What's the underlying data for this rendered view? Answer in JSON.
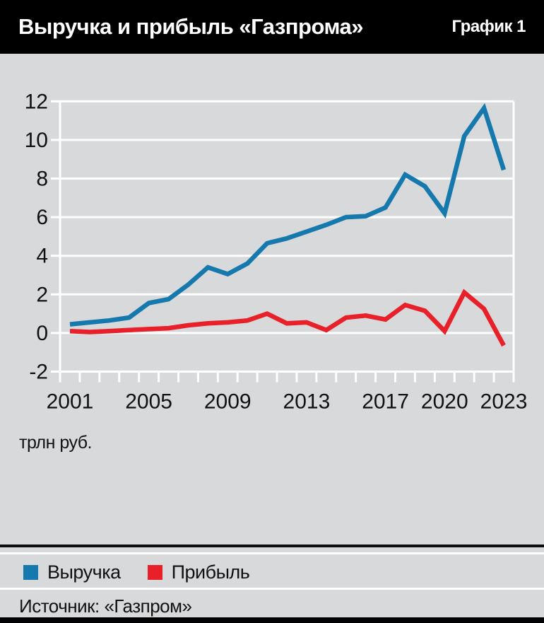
{
  "header": {
    "title": "Выручка и прибыль «Газпрома»",
    "chart_label": "График 1"
  },
  "units_label": "трлн руб.",
  "source_label": "Источник: «Газпром»",
  "legend": {
    "revenue": "Выручка",
    "profit": "Прибыль"
  },
  "colors": {
    "revenue_blue": "#1679ae",
    "profit_red": "#e8202a",
    "panel_gray": "#d8d9da",
    "grid_white": "#ffffff",
    "header_black": "#000000",
    "text_black": "#111111"
  },
  "chart_data": {
    "type": "line",
    "title": "Выручка и прибыль «Газпрома»",
    "ylabel": "трлн руб.",
    "x": [
      2001,
      2002,
      2003,
      2004,
      2005,
      2006,
      2007,
      2008,
      2009,
      2010,
      2011,
      2012,
      2013,
      2014,
      2015,
      2016,
      2017,
      2018,
      2019,
      2020,
      2021,
      2022,
      2023
    ],
    "series": [
      {
        "name": "Выручка",
        "color": "#1679ae",
        "values": [
          0.45,
          0.55,
          0.65,
          0.8,
          1.55,
          1.75,
          2.5,
          3.4,
          3.05,
          3.6,
          4.65,
          4.9,
          5.25,
          5.6,
          6.0,
          6.05,
          6.5,
          8.2,
          7.6,
          6.2,
          10.2,
          11.65,
          8.45
        ]
      },
      {
        "name": "Прибыль",
        "color": "#e8202a",
        "values": [
          0.1,
          0.05,
          0.1,
          0.15,
          0.2,
          0.25,
          0.4,
          0.5,
          0.55,
          0.65,
          1.0,
          0.5,
          0.55,
          0.15,
          0.8,
          0.9,
          0.7,
          1.45,
          1.15,
          0.1,
          2.1,
          1.25,
          -0.65
        ]
      }
    ],
    "ylim": [
      -2,
      12
    ],
    "yticks": [
      12,
      10,
      8,
      6,
      4,
      2,
      0,
      -2
    ],
    "xticks": [
      2001,
      2005,
      2009,
      2013,
      2017,
      2020,
      2023
    ],
    "grid": "horizontal",
    "legend_position": "bottom"
  }
}
